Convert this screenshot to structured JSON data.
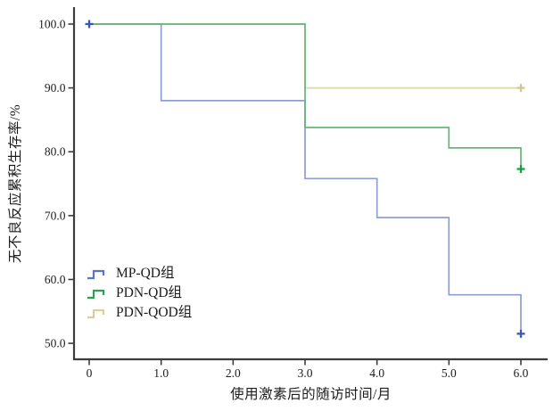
{
  "figure": {
    "background": "#ffffff",
    "axis_color": "#3d3d3d",
    "tick_label_color": "#1c1c1c"
  },
  "chart_data": {
    "type": "line",
    "subtype": "kaplan-meier-step-survival",
    "title": "",
    "xlabel": "使用激素后的随访时间/月",
    "ylabel": "无不良反应累积生存率/%",
    "xlim": [
      -0.211,
      6.372
    ],
    "ylim": [
      47.5,
      102.65
    ],
    "grid": false,
    "legend_position": "inside-lower-left",
    "x_ticks": [
      {
        "value": 0,
        "label": "0"
      },
      {
        "value": 1,
        "label": "1.0"
      },
      {
        "value": 2,
        "label": "2.0"
      },
      {
        "value": 3,
        "label": "3.0"
      },
      {
        "value": 4,
        "label": "4.0"
      },
      {
        "value": 5,
        "label": "5.0"
      },
      {
        "value": 6,
        "label": "6.0"
      }
    ],
    "y_ticks": [
      {
        "value": 50,
        "label": "50.0"
      },
      {
        "value": 60,
        "label": "60.0"
      },
      {
        "value": 70,
        "label": "70.0"
      },
      {
        "value": 80,
        "label": "80.0"
      },
      {
        "value": 90,
        "label": "90.0"
      },
      {
        "value": 100,
        "label": "100.0"
      }
    ],
    "series": [
      {
        "name": "MP-QD组",
        "line_color": "#8e9ed4",
        "legend_color": "#5a74c8",
        "marker_color": "#3d55bc",
        "z": 1,
        "points": [
          [
            0,
            100
          ],
          [
            1,
            100
          ],
          [
            1,
            88
          ],
          [
            3,
            88
          ],
          [
            3,
            75.8
          ],
          [
            4,
            75.8
          ],
          [
            4,
            69.7
          ],
          [
            5,
            69.7
          ],
          [
            5,
            57.6
          ],
          [
            6,
            57.6
          ],
          [
            6,
            51.5
          ]
        ],
        "censor_marks": [
          [
            0,
            100
          ],
          [
            6,
            51.5
          ]
        ]
      },
      {
        "name": "PDN-QD组",
        "line_color": "#67b677",
        "legend_color": "#2da155",
        "marker_color": "#189e45",
        "z": 2,
        "points": [
          [
            0,
            100
          ],
          [
            3,
            100
          ],
          [
            3,
            83.8
          ],
          [
            5,
            83.8
          ],
          [
            5,
            80.6
          ],
          [
            6,
            80.6
          ],
          [
            6,
            77.3
          ]
        ],
        "censor_marks": [
          [
            6,
            77.3
          ]
        ]
      },
      {
        "name": "PDN-QOD组",
        "line_color": "#ded8ac",
        "legend_color": "#d8d09c",
        "marker_color": "#cfc78f",
        "z": 0,
        "points": [
          [
            0,
            100
          ],
          [
            3,
            100
          ],
          [
            3,
            90
          ],
          [
            6,
            90
          ]
        ],
        "censor_marks": [
          [
            6,
            90
          ]
        ]
      }
    ]
  }
}
